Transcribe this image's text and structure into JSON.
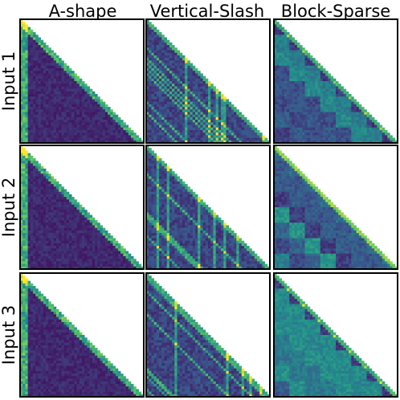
{
  "chart_data": {
    "type": "heatmap",
    "description_free_layout": true,
    "columns": [
      "A-shape",
      "Vertical-Slash",
      "Block-Sparse"
    ],
    "rows": [
      "Input 1",
      "Input 2",
      "Input 3"
    ],
    "colormap": [
      "#440154",
      "#3b528b",
      "#21918c",
      "#5ec962",
      "#fde725"
    ],
    "frame_color": "#000000",
    "background_color": "#ffffff",
    "masked_region": "upper-right triangle",
    "grid_resolution": 48
  }
}
